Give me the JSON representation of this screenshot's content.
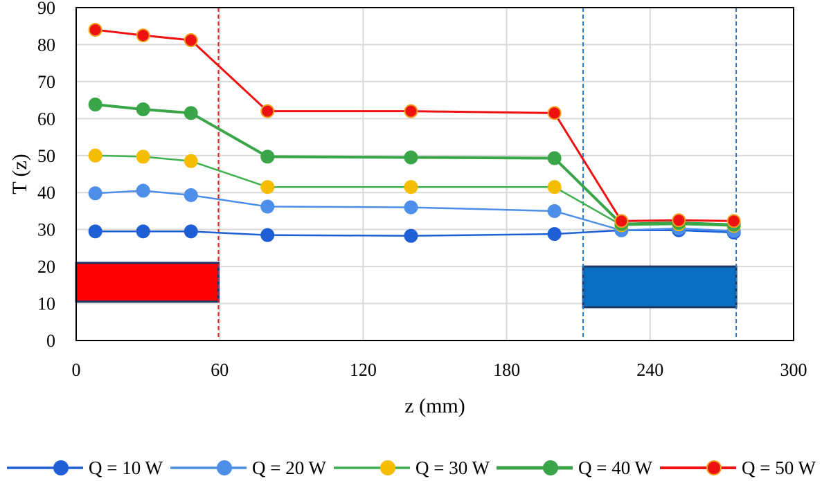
{
  "chart_data": {
    "type": "line",
    "xlabel": "z (mm)",
    "ylabel": "T (z)",
    "xlim": [
      0,
      300
    ],
    "ylim": [
      0,
      90
    ],
    "xticks": [
      0,
      60,
      120,
      180,
      240,
      300
    ],
    "yticks": [
      0,
      10,
      20,
      30,
      40,
      50,
      60,
      70,
      80,
      90
    ],
    "x": [
      8,
      28,
      48,
      80,
      140,
      200,
      228,
      252,
      275
    ],
    "grid": true,
    "legend_position": "bottom",
    "series": [
      {
        "name": "Q = 10 W",
        "color": "#1f5fd6",
        "line_width": 2.5,
        "marker_stroke": "#1f5fd6",
        "values": [
          29.5,
          29.5,
          29.5,
          28.5,
          28.3,
          28.8,
          29.8,
          29.8,
          29.2
        ]
      },
      {
        "name": "Q = 20 W",
        "color": "#4d8ee8",
        "line_width": 2.5,
        "marker_stroke": "#4d8ee8",
        "values": [
          39.8,
          40.5,
          39.3,
          36.2,
          36.0,
          35.0,
          29.8,
          30.3,
          29.6
        ]
      },
      {
        "name": "Q = 30 W",
        "color": "#3fb04f",
        "marker_fill": "#f5bd00",
        "line_width": 2.5,
        "marker_stroke": "#f5bd00",
        "values": [
          50.0,
          49.7,
          48.5,
          41.5,
          41.5,
          41.5,
          31.2,
          31.4,
          31.0
        ]
      },
      {
        "name": "Q = 40 W",
        "color": "#3aa548",
        "line_width": 4,
        "marker_stroke": "#3aa548",
        "values": [
          63.8,
          62.5,
          61.5,
          49.7,
          49.5,
          49.3,
          31.5,
          31.8,
          31.3
        ]
      },
      {
        "name": "Q = 50 W",
        "color": "#ee1111",
        "line_width": 3,
        "marker_stroke": "#f0a020",
        "values": [
          84.0,
          82.5,
          81.2,
          62.0,
          62.0,
          61.5,
          32.3,
          32.5,
          32.3
        ]
      }
    ],
    "annotations": {
      "red_box": {
        "x_range": [
          0,
          59.5
        ],
        "y_range": [
          10.5,
          21
        ],
        "fill": "#ff0000",
        "stroke": "#1f3864"
      },
      "blue_box": {
        "x_range": [
          212,
          276
        ],
        "y_range": [
          9,
          20
        ],
        "fill": "#0a6fc2",
        "stroke": "#1f3864"
      },
      "red_dashed_x": [
        59.5
      ],
      "blue_dashed_x": [
        212,
        276
      ]
    }
  }
}
